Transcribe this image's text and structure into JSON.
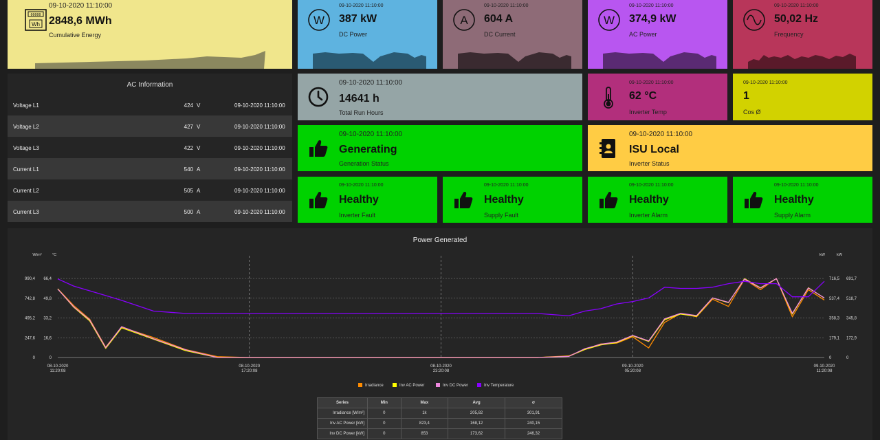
{
  "colors": {
    "yellow": "#f0e68c",
    "blue": "#5eb3e0",
    "mauve": "#8e6b77",
    "purple": "#b856f0",
    "crimson": "#b8365a",
    "grey": "#95a5a6",
    "magenta": "#b22f7c",
    "lime": "#d2d200",
    "green": "#00d200",
    "amber": "#ffcc44"
  },
  "energy": {
    "timestamp": "09-10-2020 11:10:00",
    "value": "2848,6 MWh",
    "label": "Cumulative Energy",
    "meter_text": "00000",
    "unit_text": "Wh"
  },
  "dc_power": {
    "timestamp": "09-10-2020 11:10:00",
    "value": "387 kW",
    "label": "DC Power",
    "icon_text": "W"
  },
  "dc_current": {
    "timestamp": "09-10-2020 11:10:00",
    "value": "604 A",
    "label": "DC Current",
    "icon_text": "A"
  },
  "ac_power": {
    "timestamp": "09-10-2020 11:10:00",
    "value": "374,9 kW",
    "label": "AC Power",
    "icon_text": "W"
  },
  "frequency": {
    "timestamp": "09-10-2020 11:10:00",
    "value": "50,02 Hz",
    "label": "Frequency"
  },
  "run_hours": {
    "timestamp": "09-10-2020 11:10:00",
    "value": "14641 h",
    "label": "Total Run Hours"
  },
  "inv_temp": {
    "timestamp": "09-10-2020 11:10:00",
    "value": "62 °C",
    "label": "Inverter Temp"
  },
  "cos_phi": {
    "timestamp": "09-10-2020 11:10:00",
    "value": "1",
    "label": "Cos Ø"
  },
  "gen_status": {
    "timestamp": "09-10-2020 11:10:00",
    "value": "Generating",
    "label": "Generation Status"
  },
  "inv_status": {
    "timestamp": "09-10-2020 11:10:00",
    "value": "ISU Local",
    "label": "Inverter Status"
  },
  "inverter_fault": {
    "timestamp": "09-10-2020 11:10:00",
    "value": "Healthy",
    "label": "Inverter Fault"
  },
  "supply_fault": {
    "timestamp": "09-10-2020 11:10:00",
    "value": "Healthy",
    "label": "Supply Fault"
  },
  "inverter_alarm": {
    "timestamp": "09-10-2020 11:10:00",
    "value": "Healthy",
    "label": "Inverter Alarm"
  },
  "supply_alarm": {
    "timestamp": "09-10-2020 11:10:00",
    "value": "Healthy",
    "label": "Supply Alarm"
  },
  "ac_info": {
    "title": "AC Information",
    "rows": [
      {
        "name": "Voltage L1",
        "value": "424",
        "unit": "V",
        "time": "09-10-2020 11:10:00"
      },
      {
        "name": "Voltage L2",
        "value": "427",
        "unit": "V",
        "time": "09-10-2020 11:10:00"
      },
      {
        "name": "Voltage L3",
        "value": "422",
        "unit": "V",
        "time": "09-10-2020 11:10:00"
      },
      {
        "name": "Current L1",
        "value": "540",
        "unit": "A",
        "time": "09-10-2020 11:10:00"
      },
      {
        "name": "Current L2",
        "value": "505",
        "unit": "A",
        "time": "09-10-2020 11:10:00"
      },
      {
        "name": "Current L3",
        "value": "500",
        "unit": "A",
        "time": "09-10-2020 11:10:00"
      }
    ]
  },
  "chart_data": {
    "type": "line",
    "title": "Power Generated",
    "axes": {
      "left_outer": {
        "unit": "W/m²",
        "ticks": [
          "990,4",
          "742,8",
          "495,2",
          "247,6",
          "0"
        ]
      },
      "left_inner": {
        "unit": "°C",
        "ticks": [
          "66,4",
          "49,8",
          "33,2",
          "16,6",
          "0"
        ]
      },
      "right_inner": {
        "unit": "kW",
        "ticks": [
          "716,5",
          "537,4",
          "358,3",
          "179,1",
          "0"
        ]
      },
      "right_outer": {
        "unit": "kW",
        "ticks": [
          "691,7",
          "518,7",
          "345,8",
          "172,9",
          "0"
        ]
      }
    },
    "x_ticks": [
      [
        "08-10-2020",
        "11:20:08"
      ],
      [
        "08-10-2020",
        "17:20:08"
      ],
      [
        "08-10-2020",
        "23:20:08"
      ],
      [
        "09-10-2020",
        "05:20:08"
      ],
      [
        "09-10-2020",
        "11:20:08"
      ]
    ],
    "x_hours": [
      0,
      0.5,
      1,
      1.5,
      2,
      3,
      4,
      5,
      6,
      8,
      10,
      12,
      14,
      15,
      16,
      16.5,
      17,
      17.5,
      18,
      18.5,
      19,
      19.5,
      20,
      20.5,
      21,
      21.5,
      22,
      22.5,
      23,
      23.5,
      24
    ],
    "series": [
      {
        "name": "Irradiance",
        "color": "#ff8c00",
        "axis": "left_outer",
        "values": [
          860,
          650,
          480,
          130,
          380,
          250,
          100,
          10,
          0,
          0,
          0,
          0,
          0,
          0,
          20,
          100,
          170,
          180,
          260,
          120,
          440,
          550,
          510,
          730,
          640,
          980,
          850,
          990,
          510,
          850,
          720
        ]
      },
      {
        "name": "Inv AC Power",
        "color": "#ffff00",
        "axis": "right_outer",
        "values": [
          600,
          440,
          320,
          80,
          260,
          160,
          60,
          0,
          0,
          0,
          0,
          0,
          0,
          0,
          10,
          70,
          110,
          130,
          190,
          140,
          330,
          380,
          360,
          520,
          480,
          690,
          610,
          690,
          380,
          610,
          520
        ]
      },
      {
        "name": "Inv DC Power",
        "color": "#ee88dd",
        "axis": "right_inner",
        "values": [
          620,
          460,
          340,
          90,
          280,
          170,
          70,
          0,
          0,
          0,
          0,
          0,
          0,
          0,
          10,
          80,
          120,
          140,
          200,
          150,
          350,
          400,
          380,
          540,
          500,
          710,
          630,
          715,
          400,
          630,
          540
        ]
      },
      {
        "name": "Inv Temperature",
        "color": "#8800ff",
        "axis": "left_inner",
        "values": [
          66,
          60,
          56,
          52,
          48,
          39,
          37,
          37,
          37,
          37,
          37,
          37,
          37,
          37,
          35,
          39,
          41,
          45,
          47,
          50,
          59,
          58,
          58,
          59,
          62,
          64,
          62,
          62,
          51,
          51,
          64
        ]
      }
    ],
    "legend_position": "bottom",
    "grid": true,
    "stats_table": {
      "headers": [
        "Series",
        "Min",
        "Max",
        "Avg",
        "σ"
      ],
      "rows": [
        [
          "Irradiance [W/m²]",
          "0",
          "1k",
          "205,82",
          "301,91"
        ],
        [
          "Inv AC Power [kW]",
          "0",
          "823,4",
          "168,12",
          "240,15"
        ],
        [
          "Inv DC Power [kW]",
          "0",
          "853",
          "173,62",
          "246,32"
        ]
      ]
    }
  }
}
